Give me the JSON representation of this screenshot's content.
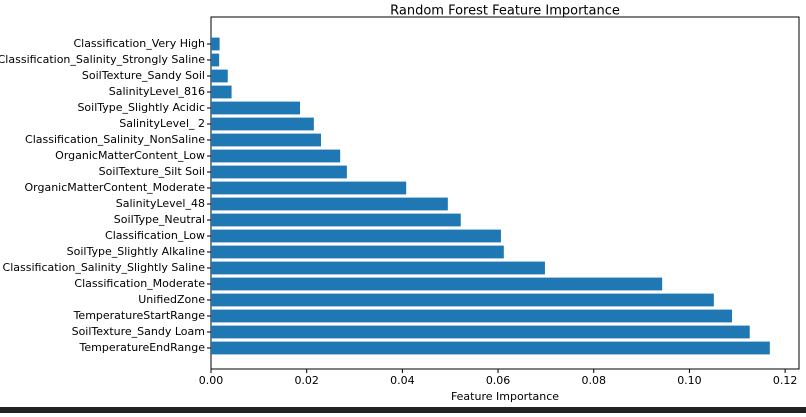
{
  "chart_data": {
    "type": "barh",
    "title": "Random Forest Feature Importance",
    "x_label": "Feature Importance",
    "categories": [
      "Classification_Very High",
      "Classification_Salinity_Strongly Saline",
      "SoilTexture_Sandy Soil",
      "SalinityLevel_816",
      "SoilType_Slightly Acidic",
      "SalinityLevel_ 2",
      "Classification_Salinity_NonSaline",
      "OrganicMatterContent_Low",
      "SoilTexture_Silt Soil",
      "OrganicMatterContent_Moderate",
      "SalinityLevel_48",
      "SoilType_Neutral",
      "Classification_Low",
      "SoilType_Slightly Alkaline",
      "Classification_Salinity_Slightly Saline",
      "Classification_Moderate",
      "UnifiedZone",
      "TemperatureStartRange",
      "SoilTexture_Sandy Loam",
      "TemperatureEndRange"
    ],
    "values": [
      0.0018,
      0.0017,
      0.0035,
      0.0043,
      0.0186,
      0.0215,
      0.023,
      0.027,
      0.0284,
      0.0408,
      0.0495,
      0.0522,
      0.0606,
      0.0612,
      0.0698,
      0.0943,
      0.1051,
      0.1089,
      0.1126,
      0.1168
    ],
    "color": "#1f77b4",
    "xlim": [
      0,
      0.1229
    ],
    "xticks": [
      {
        "value": 0,
        "label": "0.00"
      },
      0.02,
      0.04,
      0.06,
      0.08,
      {
        "value": 0.1,
        "label": "0.10"
      },
      {
        "value": 0.12,
        "label": "0.12"
      }
    ]
  }
}
